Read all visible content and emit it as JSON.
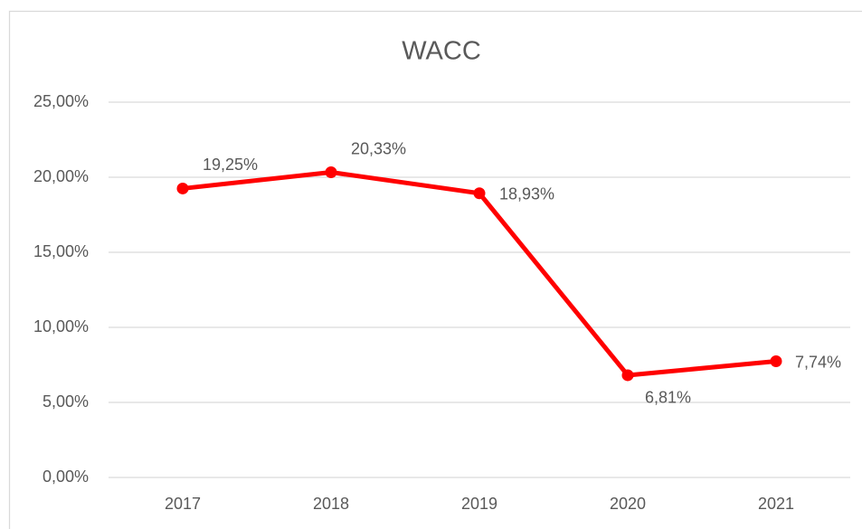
{
  "chart_data": {
    "type": "line",
    "title": "WACC",
    "categories": [
      "2017",
      "2018",
      "2019",
      "2020",
      "2021"
    ],
    "series": [
      {
        "name": "WACC",
        "color": "#ff0000",
        "values": [
          19.25,
          20.33,
          18.93,
          6.81,
          7.74
        ],
        "value_labels": [
          "19,25%",
          "20,33%",
          "18,93%",
          "6,81%",
          "7,74%"
        ]
      }
    ],
    "ylim": [
      0,
      25
    ],
    "yticks": [
      {
        "value": 0,
        "label": "0,00%"
      },
      {
        "value": 5,
        "label": "5,00%"
      },
      {
        "value": 10,
        "label": "10,00%"
      },
      {
        "value": 15,
        "label": "15,00%"
      },
      {
        "value": 20,
        "label": "20,00%"
      },
      {
        "value": 25,
        "label": "25,00%"
      }
    ],
    "grid": true
  }
}
